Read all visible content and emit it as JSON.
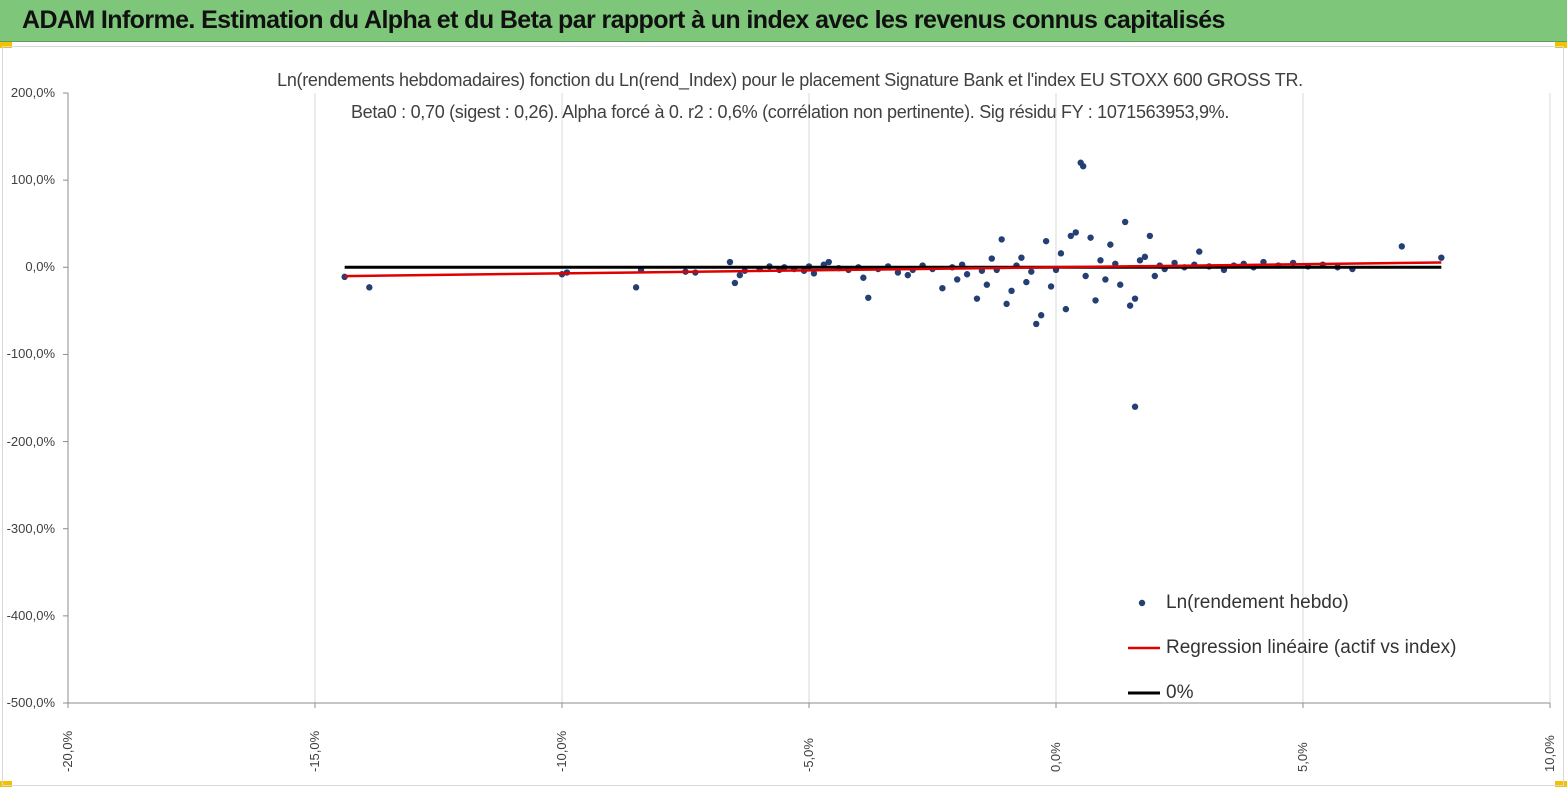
{
  "banner": {
    "title": "ADAM Informe. Estimation du Alpha et du Beta par rapport à un index avec les revenus connus capitalisés"
  },
  "colors": {
    "banner_bg": "#7dc67a",
    "corner_accent": "#f2c200",
    "points": "#233f74",
    "regression": "#e00000",
    "zero_line": "#000000",
    "grid": "#d9d9d9"
  },
  "chart_data": {
    "type": "scatter",
    "title": "Ln(rendements hebdomadaires) fonction du Ln(rend_Index) pour le placement Signature Bank et l'index EU STOXX 600 GROSS TR.",
    "subtitle": "Beta0 : 0,70 (sigest : 0,26). Alpha forcé à 0. r2 : 0,6% (corrélation non pertinente). Sig résidu FY : 1071563953,9%.",
    "xlim": [
      -20,
      10
    ],
    "ylim": [
      -500,
      200
    ],
    "x_ticks": [
      "-20,0%",
      "-15,0%",
      "-10,0%",
      "-5,0%",
      "0,0%",
      "5,0%",
      "10,0%"
    ],
    "y_ticks": [
      "200,0%",
      "100,0%",
      "0,0%",
      "-100,0%",
      "-200,0%",
      "-300,0%",
      "-400,0%",
      "-500,0%"
    ],
    "grid": "vertical",
    "legend_position": "bottom-right",
    "series": [
      {
        "name": "Ln(rendement hebdo)",
        "type": "scatter",
        "points": [
          [
            -14.4,
            -11
          ],
          [
            -13.9,
            -23
          ],
          [
            -10.0,
            -8
          ],
          [
            -9.9,
            -6
          ],
          [
            -8.5,
            -23
          ],
          [
            -8.4,
            -3
          ],
          [
            -7.5,
            -5
          ],
          [
            -7.3,
            -6
          ],
          [
            -6.6,
            6
          ],
          [
            -6.5,
            -18
          ],
          [
            -6.4,
            -9
          ],
          [
            -6.3,
            -4
          ],
          [
            -6.0,
            -2
          ],
          [
            -5.8,
            1
          ],
          [
            -5.6,
            -3
          ],
          [
            -5.5,
            0
          ],
          [
            -5.3,
            -2
          ],
          [
            -5.1,
            -4
          ],
          [
            -5.0,
            1
          ],
          [
            -4.9,
            -7
          ],
          [
            -4.7,
            3
          ],
          [
            -4.6,
            6
          ],
          [
            -4.4,
            -1
          ],
          [
            -4.2,
            -3
          ],
          [
            -4.0,
            0
          ],
          [
            -3.9,
            -12
          ],
          [
            -3.8,
            -35
          ],
          [
            -3.6,
            -2
          ],
          [
            -3.4,
            1
          ],
          [
            -3.2,
            -6
          ],
          [
            -3.0,
            -9
          ],
          [
            -2.9,
            -3
          ],
          [
            -2.7,
            2
          ],
          [
            -2.5,
            -2
          ],
          [
            -2.3,
            -24
          ],
          [
            -2.1,
            0
          ],
          [
            -2.0,
            -14
          ],
          [
            -1.9,
            3
          ],
          [
            -1.8,
            -8
          ],
          [
            -1.6,
            -36
          ],
          [
            -1.5,
            -4
          ],
          [
            -1.4,
            -20
          ],
          [
            -1.3,
            10
          ],
          [
            -1.2,
            -3
          ],
          [
            -1.1,
            32
          ],
          [
            -1.0,
            -42
          ],
          [
            -0.9,
            -27
          ],
          [
            -0.8,
            2
          ],
          [
            -0.7,
            11
          ],
          [
            -0.6,
            -17
          ],
          [
            -0.5,
            -5
          ],
          [
            -0.4,
            -65
          ],
          [
            -0.3,
            -55
          ],
          [
            -0.2,
            30
          ],
          [
            -0.1,
            -22
          ],
          [
            0.0,
            -3
          ],
          [
            0.1,
            16
          ],
          [
            0.2,
            -48
          ],
          [
            0.3,
            36
          ],
          [
            0.4,
            40
          ],
          [
            0.5,
            120
          ],
          [
            0.55,
            116
          ],
          [
            0.6,
            -10
          ],
          [
            0.7,
            34
          ],
          [
            0.8,
            -38
          ],
          [
            0.9,
            8
          ],
          [
            1.0,
            -14
          ],
          [
            1.1,
            26
          ],
          [
            1.2,
            4
          ],
          [
            1.3,
            -20
          ],
          [
            1.4,
            52
          ],
          [
            1.5,
            -44
          ],
          [
            1.6,
            -36
          ],
          [
            1.6,
            -160
          ],
          [
            1.7,
            8
          ],
          [
            1.8,
            12
          ],
          [
            1.9,
            36
          ],
          [
            2.0,
            -10
          ],
          [
            2.1,
            2
          ],
          [
            2.2,
            -2
          ],
          [
            2.4,
            5
          ],
          [
            2.6,
            0
          ],
          [
            2.8,
            3
          ],
          [
            2.9,
            18
          ],
          [
            3.1,
            1
          ],
          [
            3.4,
            -3
          ],
          [
            3.6,
            2
          ],
          [
            3.8,
            4
          ],
          [
            4.0,
            0
          ],
          [
            4.2,
            6
          ],
          [
            4.5,
            2
          ],
          [
            4.8,
            5
          ],
          [
            5.1,
            1
          ],
          [
            5.4,
            3
          ],
          [
            5.7,
            0
          ],
          [
            6.0,
            -2
          ],
          [
            7.0,
            24
          ],
          [
            7.8,
            11
          ]
        ]
      },
      {
        "name": "Regression linéaire (actif vs index)",
        "type": "line",
        "points": [
          [
            -14.4,
            -10.1
          ],
          [
            7.8,
            5.5
          ]
        ]
      },
      {
        "name": "0%",
        "type": "line",
        "points": [
          [
            -14.4,
            0
          ],
          [
            7.8,
            0
          ]
        ]
      }
    ]
  }
}
